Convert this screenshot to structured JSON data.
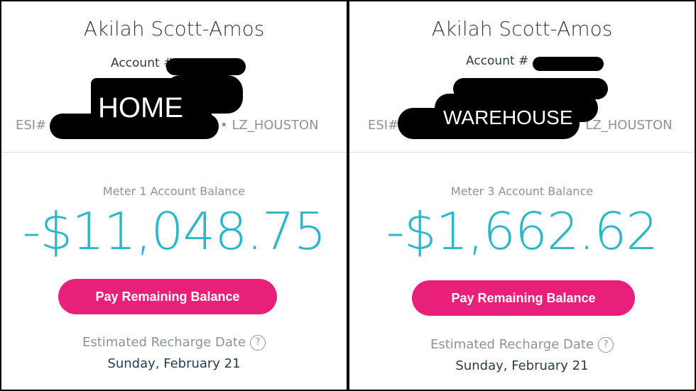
{
  "panels": [
    {
      "name": "Akilah Scott-Amos",
      "account_label": "Account #",
      "esi_label": "ESI#",
      "zone": "• LZ_HOUSTON",
      "redaction_label": "HOME",
      "meter_label": "Meter 1 Account Balance",
      "balance": "-$11,048.75",
      "pay_button": "Pay Remaining Balance",
      "recharge_label": "Estimated Recharge Date",
      "help_icon": "?",
      "recharge_date": "Sunday, February 21"
    },
    {
      "name": "Akilah Scott-Amos",
      "account_label": "Account #",
      "esi_label": "ESI#",
      "zone": "• LZ_HOUSTON",
      "redaction_label": "WAREHOUSE",
      "meter_label": "Meter 3 Account Balance",
      "balance": "-$1,662.62",
      "pay_button": "Pay Remaining Balance",
      "recharge_label": "Estimated Recharge Date",
      "help_icon": "?",
      "recharge_date": "Sunday, February 21"
    }
  ],
  "colors": {
    "balance": "#2bb7c9",
    "button": "#e8207a",
    "text": "#2a3b4c"
  }
}
